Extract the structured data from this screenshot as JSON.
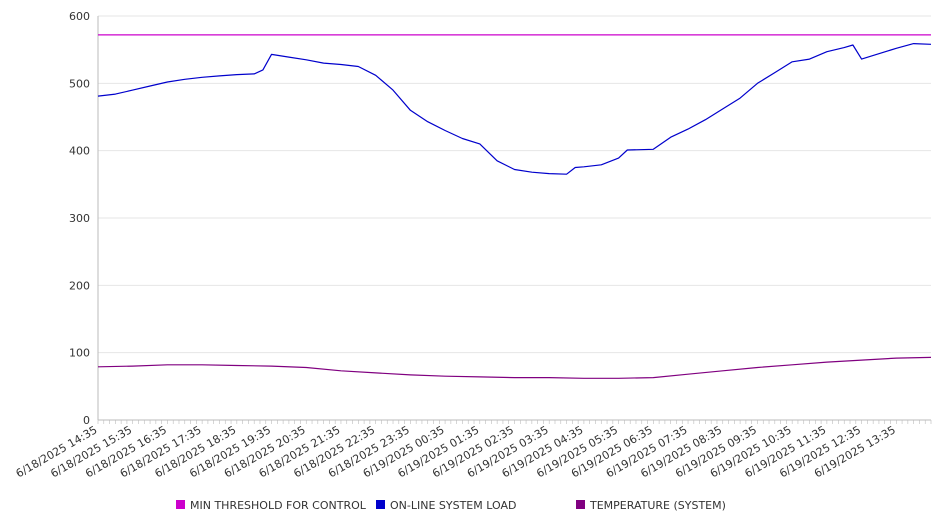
{
  "chart_data": {
    "type": "line",
    "title": "",
    "xlabel": "",
    "ylabel": "",
    "ylim": [
      0,
      600
    ],
    "y_ticks": [
      0,
      100,
      200,
      300,
      400,
      500,
      600
    ],
    "grid": "horizontal",
    "legend_position": "bottom",
    "x_tick_labels": [
      "6/18/2025 14:35",
      "6/18/2025 15:35",
      "6/18/2025 16:35",
      "6/18/2025 17:35",
      "6/18/2025 18:35",
      "6/18/2025 19:35",
      "6/18/2025 20:35",
      "6/18/2025 21:35",
      "6/18/2025 22:35",
      "6/18/2025 23:35",
      "6/19/2025 00:35",
      "6/19/2025 01:35",
      "6/19/2025 02:35",
      "6/19/2025 03:35",
      "6/19/2025 04:35",
      "6/19/2025 05:35",
      "6/19/2025 06:35",
      "6/19/2025 07:35",
      "6/19/2025 08:35",
      "6/19/2025 09:35",
      "6/19/2025 10:35",
      "6/19/2025 11:35",
      "6/19/2025 12:35",
      "6/19/2025 13:35"
    ],
    "x_range": [
      "6/18/2025 14:35",
      "6/19/2025 14:35"
    ],
    "series": [
      {
        "name": "MIN THRESHOLD FOR CONTROL",
        "color": "#cc00cc",
        "points": [
          [
            "6/18/2025 14:35",
            572
          ],
          [
            "6/19/2025 14:35",
            572
          ]
        ]
      },
      {
        "name": "ON-LINE SYSTEM LOAD",
        "color": "#0000cc",
        "points": [
          [
            "6/18/2025 14:35",
            481
          ],
          [
            "6/18/2025 15:05",
            484
          ],
          [
            "6/18/2025 15:35",
            490
          ],
          [
            "6/18/2025 16:05",
            496
          ],
          [
            "6/18/2025 16:35",
            502
          ],
          [
            "6/18/2025 17:05",
            506
          ],
          [
            "6/18/2025 17:35",
            509
          ],
          [
            "6/18/2025 18:05",
            511
          ],
          [
            "6/18/2025 18:35",
            513
          ],
          [
            "6/18/2025 19:05",
            514
          ],
          [
            "6/18/2025 19:20",
            520
          ],
          [
            "6/18/2025 19:35",
            543
          ],
          [
            "6/18/2025 20:05",
            539
          ],
          [
            "6/18/2025 20:35",
            535
          ],
          [
            "6/18/2025 21:05",
            530
          ],
          [
            "6/18/2025 21:35",
            528
          ],
          [
            "6/18/2025 22:05",
            525
          ],
          [
            "6/18/2025 22:35",
            512
          ],
          [
            "6/18/2025 23:05",
            490
          ],
          [
            "6/18/2025 23:35",
            460
          ],
          [
            "6/19/2025 00:05",
            443
          ],
          [
            "6/19/2025 00:35",
            430
          ],
          [
            "6/19/2025 01:05",
            418
          ],
          [
            "6/19/2025 01:35",
            410
          ],
          [
            "6/19/2025 02:05",
            385
          ],
          [
            "6/19/2025 02:35",
            372
          ],
          [
            "6/19/2025 03:05",
            368
          ],
          [
            "6/19/2025 03:35",
            366
          ],
          [
            "6/19/2025 04:05",
            365
          ],
          [
            "6/19/2025 04:20",
            375
          ],
          [
            "6/19/2025 04:35",
            376
          ],
          [
            "6/19/2025 05:05",
            379
          ],
          [
            "6/19/2025 05:35",
            389
          ],
          [
            "6/19/2025 05:50",
            401
          ],
          [
            "6/19/2025 06:35",
            402
          ],
          [
            "6/19/2025 07:05",
            420
          ],
          [
            "6/19/2025 07:35",
            432
          ],
          [
            "6/19/2025 08:05",
            446
          ],
          [
            "6/19/2025 08:35",
            462
          ],
          [
            "6/19/2025 09:05",
            478
          ],
          [
            "6/19/2025 09:35",
            500
          ],
          [
            "6/19/2025 10:05",
            516
          ],
          [
            "6/19/2025 10:35",
            532
          ],
          [
            "6/19/2025 11:05",
            536
          ],
          [
            "6/19/2025 11:35",
            547
          ],
          [
            "6/19/2025 12:05",
            553
          ],
          [
            "6/19/2025 12:20",
            557
          ],
          [
            "6/19/2025 12:35",
            536
          ],
          [
            "6/19/2025 13:05",
            544
          ],
          [
            "6/19/2025 13:35",
            552
          ],
          [
            "6/19/2025 14:05",
            559
          ],
          [
            "6/19/2025 14:35",
            558
          ]
        ]
      },
      {
        "name": "TEMPERATURE (SYSTEM)",
        "color": "#800080",
        "points": [
          [
            "6/18/2025 14:35",
            79
          ],
          [
            "6/18/2025 15:35",
            80
          ],
          [
            "6/18/2025 16:35",
            82
          ],
          [
            "6/18/2025 17:35",
            82
          ],
          [
            "6/18/2025 18:35",
            81
          ],
          [
            "6/18/2025 19:35",
            80
          ],
          [
            "6/18/2025 20:35",
            78
          ],
          [
            "6/18/2025 21:35",
            73
          ],
          [
            "6/18/2025 22:35",
            70
          ],
          [
            "6/18/2025 23:35",
            67
          ],
          [
            "6/19/2025 00:35",
            65
          ],
          [
            "6/19/2025 01:35",
            64
          ],
          [
            "6/19/2025 02:35",
            63
          ],
          [
            "6/19/2025 03:35",
            63
          ],
          [
            "6/19/2025 04:35",
            62
          ],
          [
            "6/19/2025 05:35",
            62
          ],
          [
            "6/19/2025 06:35",
            63
          ],
          [
            "6/19/2025 07:35",
            68
          ],
          [
            "6/19/2025 08:35",
            73
          ],
          [
            "6/19/2025 09:35",
            78
          ],
          [
            "6/19/2025 10:35",
            82
          ],
          [
            "6/19/2025 11:35",
            86
          ],
          [
            "6/19/2025 12:35",
            89
          ],
          [
            "6/19/2025 13:35",
            92
          ],
          [
            "6/19/2025 14:35",
            93
          ]
        ]
      }
    ]
  }
}
